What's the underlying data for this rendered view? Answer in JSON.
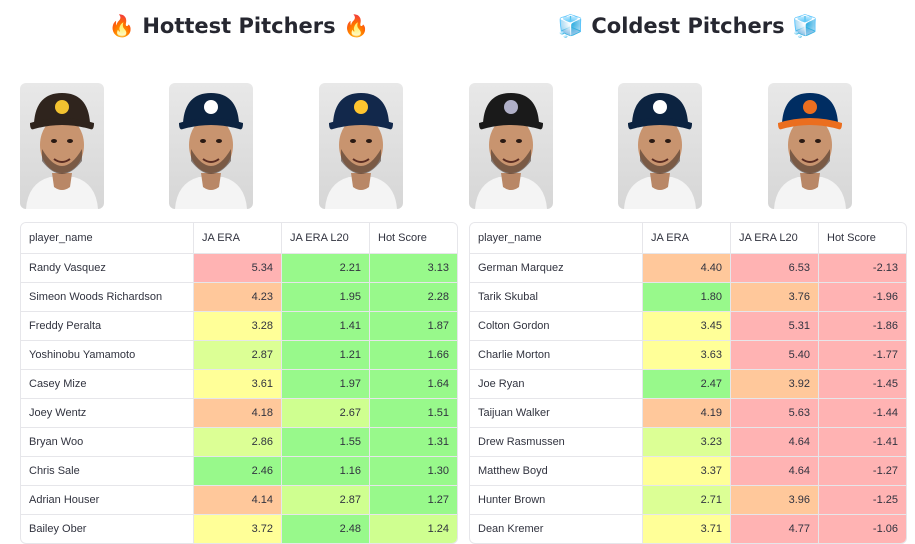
{
  "hot": {
    "title": "🔥 Hottest Pitchers 🔥",
    "columns": [
      "player_name",
      "JA ERA",
      "JA ERA L20",
      "Hot Score"
    ],
    "players": [
      {
        "icon": "padres-cap-icon",
        "cap": "#2f241d",
        "brim": "#2f241d",
        "logo": "#f2c230"
      },
      {
        "icon": "twins-cap-icon",
        "cap": "#0c2340",
        "brim": "#0c2340",
        "logo": "#ffffff"
      },
      {
        "icon": "brewers-cap-icon",
        "cap": "#12284b",
        "brim": "#12284b",
        "logo": "#ffc52f"
      }
    ],
    "rows": [
      {
        "name": "Randy Vasquez",
        "era": "5.34",
        "l20": "2.21",
        "score": "3.13",
        "c1": "#ffb3b3",
        "c2": "#98f98b",
        "c3": "#98f98b"
      },
      {
        "name": "Simeon Woods Richardson",
        "era": "4.23",
        "l20": "1.95",
        "score": "2.28",
        "c1": "#ffc89b",
        "c2": "#98f98b",
        "c3": "#98f98b"
      },
      {
        "name": "Freddy Peralta",
        "era": "3.28",
        "l20": "1.41",
        "score": "1.87",
        "c1": "#ffff98",
        "c2": "#98f98b",
        "c3": "#98f98b"
      },
      {
        "name": "Yoshinobu Yamamoto",
        "era": "2.87",
        "l20": "1.21",
        "score": "1.66",
        "c1": "#dcff95",
        "c2": "#98f98b",
        "c3": "#98f98b"
      },
      {
        "name": "Casey Mize",
        "era": "3.61",
        "l20": "1.97",
        "score": "1.64",
        "c1": "#ffff98",
        "c2": "#98f98b",
        "c3": "#98f98b"
      },
      {
        "name": "Joey Wentz",
        "era": "4.18",
        "l20": "2.67",
        "score": "1.51",
        "c1": "#ffc89b",
        "c2": "#cfff90",
        "c3": "#98f98b"
      },
      {
        "name": "Bryan Woo",
        "era": "2.86",
        "l20": "1.55",
        "score": "1.31",
        "c1": "#dcff95",
        "c2": "#98f98b",
        "c3": "#98f98b"
      },
      {
        "name": "Chris Sale",
        "era": "2.46",
        "l20": "1.16",
        "score": "1.30",
        "c1": "#98f98b",
        "c2": "#98f98b",
        "c3": "#98f98b"
      },
      {
        "name": "Adrian Houser",
        "era": "4.14",
        "l20": "2.87",
        "score": "1.27",
        "c1": "#ffc89b",
        "c2": "#cfff90",
        "c3": "#98f98b"
      },
      {
        "name": "Bailey Ober",
        "era": "3.72",
        "l20": "2.48",
        "score": "1.24",
        "c1": "#ffff98",
        "c2": "#98f98b",
        "c3": "#cfff90"
      }
    ]
  },
  "cold": {
    "title": "🧊 Coldest Pitchers 🧊",
    "columns": [
      "player_name",
      "JA ERA",
      "JA ERA L20",
      "Hot Score"
    ],
    "players": [
      {
        "icon": "rockies-cap-icon",
        "cap": "#1a1a1a",
        "brim": "#1a1a1a",
        "logo": "#b0b0c8"
      },
      {
        "icon": "tigers-cap-icon",
        "cap": "#0c2340",
        "brim": "#0c2340",
        "logo": "#ffffff"
      },
      {
        "icon": "astros-cap-icon",
        "cap": "#002d62",
        "brim": "#eb6e1f",
        "logo": "#eb6e1f"
      }
    ],
    "rows": [
      {
        "name": "German Marquez",
        "era": "4.40",
        "l20": "6.53",
        "score": "-2.13",
        "c1": "#ffc89b",
        "c2": "#ffb3b3",
        "c3": "#ffb3b3"
      },
      {
        "name": "Tarik Skubal",
        "era": "1.80",
        "l20": "3.76",
        "score": "-1.96",
        "c1": "#98f98b",
        "c2": "#ffc89b",
        "c3": "#ffb3b3"
      },
      {
        "name": "Colton Gordon",
        "era": "3.45",
        "l20": "5.31",
        "score": "-1.86",
        "c1": "#ffff98",
        "c2": "#ffb3b3",
        "c3": "#ffb3b3"
      },
      {
        "name": "Charlie Morton",
        "era": "3.63",
        "l20": "5.40",
        "score": "-1.77",
        "c1": "#ffff98",
        "c2": "#ffb3b3",
        "c3": "#ffb3b3"
      },
      {
        "name": "Joe Ryan",
        "era": "2.47",
        "l20": "3.92",
        "score": "-1.45",
        "c1": "#98f98b",
        "c2": "#ffc89b",
        "c3": "#ffb3b3"
      },
      {
        "name": "Taijuan Walker",
        "era": "4.19",
        "l20": "5.63",
        "score": "-1.44",
        "c1": "#ffc89b",
        "c2": "#ffb3b3",
        "c3": "#ffb3b3"
      },
      {
        "name": "Drew Rasmussen",
        "era": "3.23",
        "l20": "4.64",
        "score": "-1.41",
        "c1": "#dcff95",
        "c2": "#ffb3b3",
        "c3": "#ffb3b3"
      },
      {
        "name": "Matthew Boyd",
        "era": "3.37",
        "l20": "4.64",
        "score": "-1.27",
        "c1": "#ffff98",
        "c2": "#ffb3b3",
        "c3": "#ffb3b3"
      },
      {
        "name": "Hunter Brown",
        "era": "2.71",
        "l20": "3.96",
        "score": "-1.25",
        "c1": "#dcff95",
        "c2": "#ffc89b",
        "c3": "#ffb3b3"
      },
      {
        "name": "Dean Kremer",
        "era": "3.71",
        "l20": "4.77",
        "score": "-1.06",
        "c1": "#ffff98",
        "c2": "#ffb3b3",
        "c3": "#ffb3b3"
      }
    ]
  }
}
